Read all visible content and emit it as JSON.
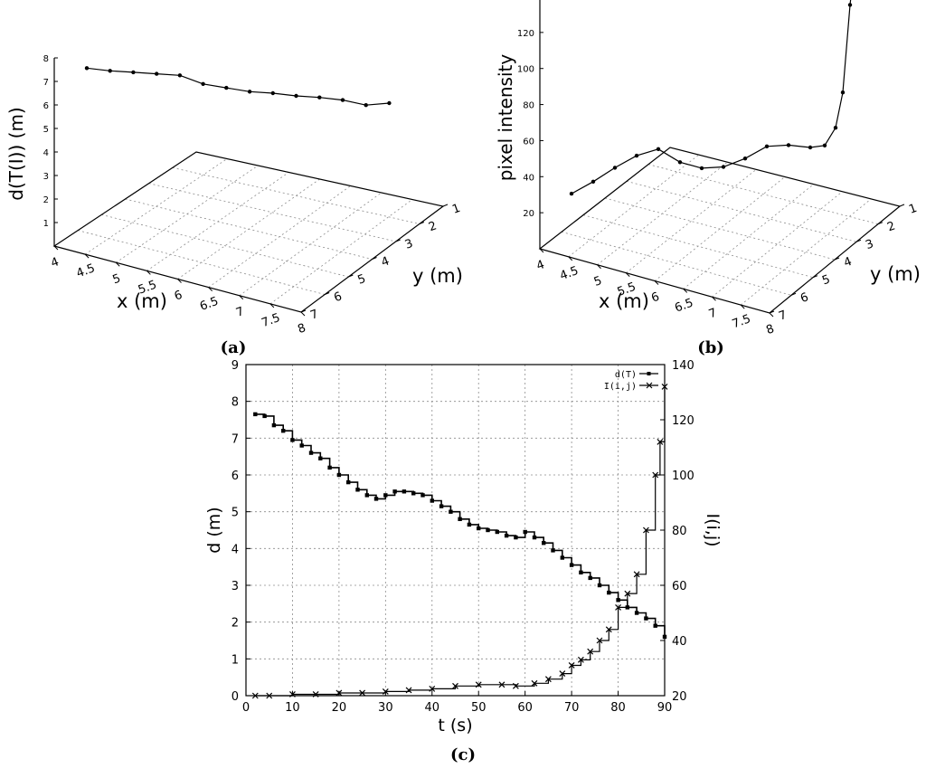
{
  "captions": {
    "a": "(a)",
    "b": "(b)",
    "c": "(c)"
  },
  "colors": {
    "ink": "#000000",
    "grid": "#8c8c8c",
    "background": "#ffffff"
  },
  "chart_data": [
    {
      "id": "a",
      "type": "line",
      "projection": "3d",
      "zlabel": "d(T(I)) (m)",
      "xlabel": "x (m)",
      "ylabel": "y (m)",
      "x_ticks": [
        "4",
        "4.5",
        "5",
        "5.5",
        "6",
        "6.5",
        "7",
        "7.5",
        "8"
      ],
      "y_ticks": [
        "1",
        "2",
        "3",
        "4",
        "5",
        "6",
        "7"
      ],
      "z_ticks": [
        "1",
        "2",
        "3",
        "4",
        "5",
        "6",
        "7",
        "8"
      ],
      "xlim": [
        4,
        8
      ],
      "ylim": [
        1,
        7
      ],
      "zlim": [
        0,
        8
      ],
      "grid": true,
      "marker": "point",
      "x": [
        4.0,
        4.3,
        4.6,
        4.9,
        5.2,
        5.5,
        5.8,
        6.1,
        6.4,
        6.7,
        7.0,
        7.3,
        7.6,
        7.9
      ],
      "y": [
        1.0,
        1.0,
        1.0,
        1.0,
        1.0,
        1.0,
        1.0,
        1.0,
        1.0,
        1.0,
        1.0,
        1.0,
        1.0,
        1.0
      ],
      "values": [
        7.45,
        7.2,
        7.0,
        6.8,
        6.6,
        6.1,
        5.8,
        5.5,
        5.3,
        5.05,
        4.85,
        4.6,
        4.25,
        4.2
      ]
    },
    {
      "id": "b",
      "type": "line",
      "projection": "3d",
      "zlabel": "pixel intensity",
      "xlabel": "x (m)",
      "ylabel": "y (m)",
      "x_ticks": [
        "4",
        "4.5",
        "5",
        "5.5",
        "6",
        "6.5",
        "7",
        "7.5",
        "8"
      ],
      "y_ticks": [
        "1",
        "2",
        "3",
        "4",
        "5",
        "6",
        "7"
      ],
      "z_ticks": [
        "20",
        "40",
        "60",
        "80",
        "100",
        "120",
        "140"
      ],
      "xlim": [
        4,
        8
      ],
      "ylim": [
        1,
        7
      ],
      "zlim": [
        0,
        140
      ],
      "grid": true,
      "marker": "point",
      "x": [
        4.0,
        4.3,
        4.6,
        4.9,
        5.2,
        5.5,
        5.8,
        6.1,
        6.4,
        6.7,
        7.0,
        7.3,
        7.5,
        7.65,
        7.75,
        7.85,
        7.95
      ],
      "y": [
        1.0,
        1.0,
        1.0,
        1.0,
        1.0,
        1.0,
        1.0,
        1.0,
        1.0,
        1.0,
        1.0,
        1.0,
        1.0,
        1.0,
        1.0,
        1.0,
        1.0
      ],
      "values": [
        17,
        22,
        28,
        33,
        35,
        26,
        21,
        20,
        23,
        28,
        27,
        24,
        24,
        33,
        52,
        100,
        135
      ]
    },
    {
      "id": "c",
      "type": "line",
      "xlabel": "t (s)",
      "ylabel": "d (m)",
      "y2label": "I(i,j)",
      "xlim": [
        0,
        90
      ],
      "ylim": [
        0,
        9
      ],
      "y2lim": [
        20,
        140
      ],
      "x_ticks": [
        "0",
        "10",
        "20",
        "30",
        "40",
        "50",
        "60",
        "70",
        "80",
        "90"
      ],
      "y_ticks": [
        "0",
        "1",
        "2",
        "3",
        "4",
        "5",
        "6",
        "7",
        "8",
        "9"
      ],
      "y2_ticks": [
        "20",
        "40",
        "60",
        "80",
        "100",
        "120",
        "140"
      ],
      "grid": true,
      "legend": "top-right",
      "series": [
        {
          "name": "d(T)",
          "axis": "left",
          "marker": "square",
          "x": [
            2,
            4,
            6,
            8,
            10,
            12,
            14,
            16,
            18,
            20,
            22,
            24,
            26,
            28,
            30,
            32,
            34,
            36,
            38,
            40,
            42,
            44,
            46,
            48,
            50,
            52,
            54,
            56,
            58,
            60,
            62,
            64,
            66,
            68,
            70,
            72,
            74,
            76,
            78,
            80,
            82,
            84,
            86,
            88,
            90
          ],
          "values": [
            7.65,
            7.6,
            7.35,
            7.2,
            6.95,
            6.8,
            6.6,
            6.45,
            6.2,
            6.0,
            5.8,
            5.6,
            5.45,
            5.35,
            5.45,
            5.55,
            5.55,
            5.5,
            5.45,
            5.3,
            5.15,
            5.0,
            4.8,
            4.65,
            4.55,
            4.5,
            4.45,
            4.35,
            4.3,
            4.45,
            4.3,
            4.15,
            3.95,
            3.75,
            3.55,
            3.35,
            3.2,
            3.0,
            2.8,
            2.6,
            2.4,
            2.25,
            2.1,
            1.9,
            1.6
          ]
        },
        {
          "name": "I(i,j)",
          "axis": "right",
          "marker": "star",
          "x": [
            2,
            5,
            10,
            15,
            20,
            25,
            30,
            35,
            40,
            45,
            50,
            55,
            58,
            62,
            65,
            68,
            70,
            72,
            74,
            76,
            78,
            80,
            82,
            84,
            86,
            88,
            89,
            90
          ],
          "values": [
            20,
            20,
            20.5,
            20.5,
            21,
            21,
            21.5,
            22,
            22.5,
            23.5,
            24,
            24,
            23.5,
            24.5,
            26,
            28,
            31,
            33,
            36,
            40,
            44,
            52,
            57,
            64,
            80,
            100,
            112,
            132
          ]
        }
      ]
    }
  ]
}
